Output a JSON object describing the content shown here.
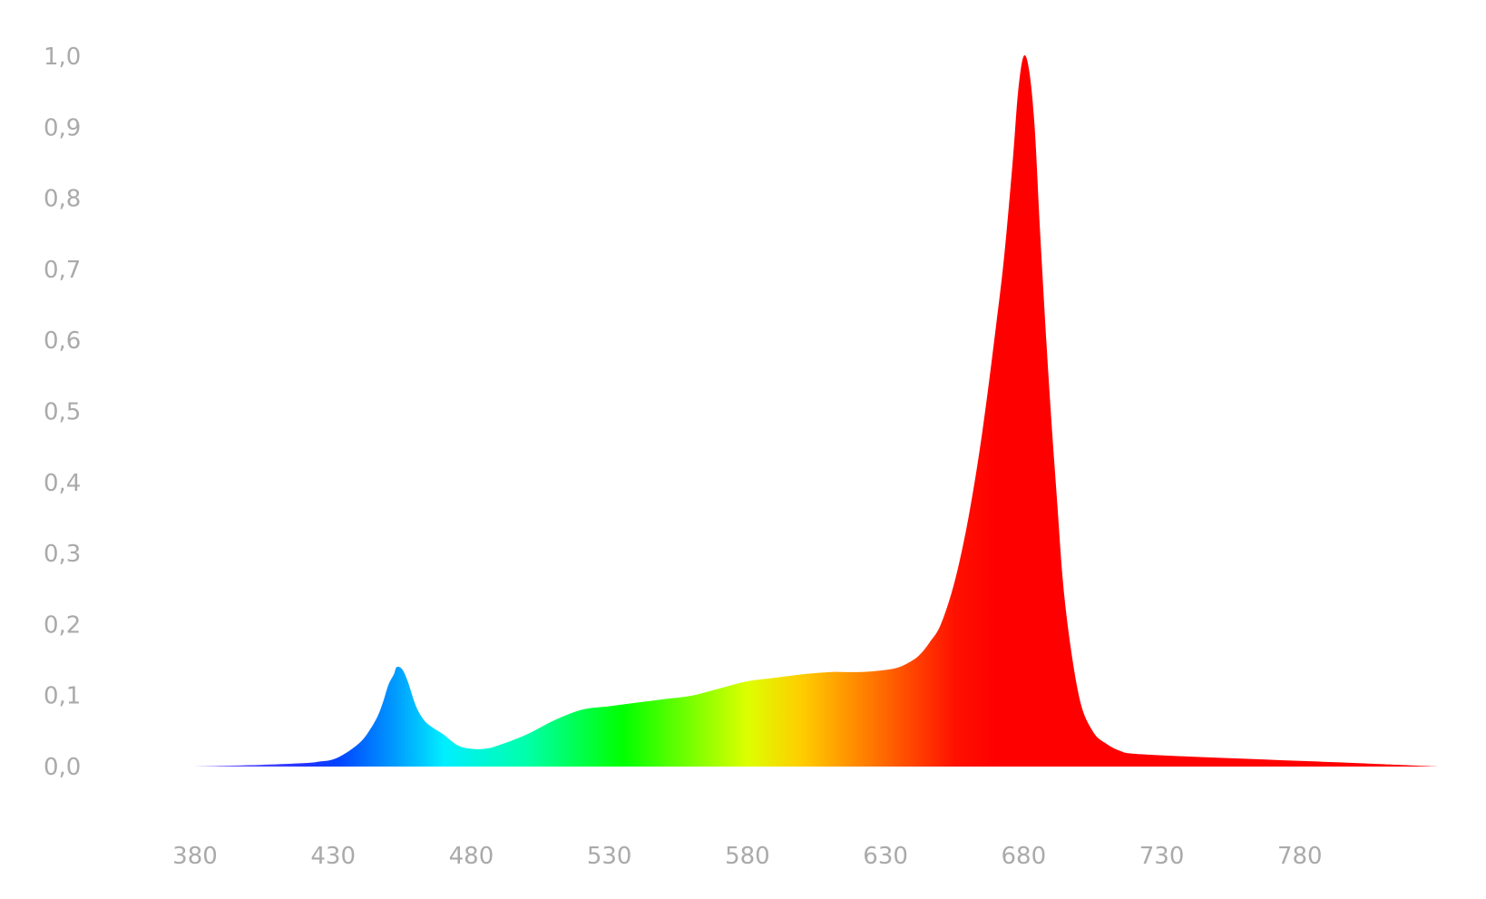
{
  "chart_data": {
    "type": "area",
    "title": "",
    "xlabel": "",
    "ylabel": "",
    "xlim": [
      380,
      830
    ],
    "ylim": [
      0,
      1
    ],
    "grid": false,
    "x_ticks": [
      "380",
      "430",
      "480",
      "530",
      "580",
      "630",
      "680",
      "730",
      "780"
    ],
    "x_tick_values": [
      380,
      430,
      480,
      530,
      580,
      630,
      680,
      730,
      780
    ],
    "y_ticks": [
      "0,0",
      "0,1",
      "0,2",
      "0,3",
      "0,4",
      "0,5",
      "0,6",
      "0,7",
      "0,8",
      "0,9",
      "1,0"
    ],
    "y_tick_values": [
      0,
      0.1,
      0.2,
      0.3,
      0.4,
      0.5,
      0.6,
      0.7,
      0.8,
      0.9,
      1.0
    ],
    "series": [
      {
        "x": [
          380,
          400,
          420,
          425,
          430,
          435,
          440,
          443,
          446,
          448,
          450,
          452,
          453,
          455,
          457,
          460,
          463,
          466,
          470,
          475,
          480,
          485,
          490,
          500,
          510,
          520,
          530,
          540,
          550,
          560,
          570,
          580,
          590,
          600,
          610,
          615,
          620,
          625,
          630,
          635,
          640,
          643,
          646,
          650,
          655,
          660,
          665,
          670,
          673,
          676,
          678,
          680,
          682,
          684,
          686,
          689,
          692,
          695,
          700,
          705,
          710,
          715,
          720,
          740,
          760,
          780,
          800,
          830
        ],
        "y": [
          0.0,
          0.002,
          0.005,
          0.007,
          0.01,
          0.02,
          0.035,
          0.05,
          0.07,
          0.09,
          0.115,
          0.13,
          0.14,
          0.137,
          0.12,
          0.085,
          0.065,
          0.055,
          0.045,
          0.03,
          0.025,
          0.025,
          0.03,
          0.045,
          0.065,
          0.08,
          0.085,
          0.09,
          0.095,
          0.1,
          0.11,
          0.12,
          0.125,
          0.13,
          0.133,
          0.133,
          0.133,
          0.134,
          0.136,
          0.14,
          0.15,
          0.16,
          0.175,
          0.2,
          0.26,
          0.35,
          0.47,
          0.62,
          0.72,
          0.85,
          0.95,
          1.0,
          0.98,
          0.9,
          0.75,
          0.55,
          0.38,
          0.23,
          0.1,
          0.05,
          0.032,
          0.022,
          0.018,
          0.014,
          0.011,
          0.008,
          0.005,
          0.0
        ],
        "gradient_stops": [
          {
            "x": 380,
            "color": "#8866ff"
          },
          {
            "x": 420,
            "color": "#2233ff"
          },
          {
            "x": 432,
            "color": "#0044ff"
          },
          {
            "x": 452,
            "color": "#0099ff"
          },
          {
            "x": 470,
            "color": "#00eeff"
          },
          {
            "x": 500,
            "color": "#00ffaa"
          },
          {
            "x": 535,
            "color": "#00ff00"
          },
          {
            "x": 580,
            "color": "#ddff00"
          },
          {
            "x": 600,
            "color": "#ffcc00"
          },
          {
            "x": 625,
            "color": "#ff7700"
          },
          {
            "x": 655,
            "color": "#ff1100"
          },
          {
            "x": 670,
            "color": "#ff0000"
          },
          {
            "x": 830,
            "color": "#ff0000"
          }
        ]
      }
    ]
  }
}
